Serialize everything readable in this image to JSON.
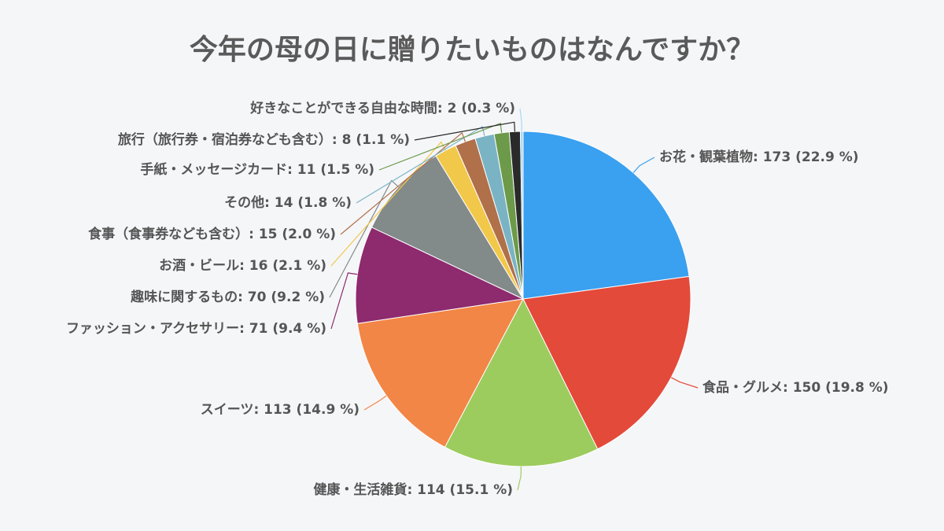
{
  "chart_data": {
    "type": "pie",
    "title": "今年の母の日に贈りたいものはなんですか？",
    "categories": [
      "お花・観葉植物",
      "食品・グルメ",
      "健康・生活雑貨",
      "スイーツ",
      "ファッション・アクセサリー",
      "趣味に関するもの",
      "お酒・ビール",
      "食事（食事券なども含む）",
      "その他",
      "手紙・メッセージカード",
      "旅行（旅行券・宿泊券なども含む）",
      "好きなことができる自由な時間"
    ],
    "values": [
      173,
      150,
      114,
      113,
      71,
      70,
      16,
      15,
      14,
      11,
      8,
      2
    ],
    "value_labels": [
      ": 173 (22.9 %)",
      ": 150 (19.8 %)",
      ": 114 (15.1 %)",
      ": 113 (14.9 %)",
      ": 71 (9.4 %)",
      ": 70 (9.2 %)",
      ": 16 (2.1 %)",
      ": 15 (2.0 %)",
      ": 14 (1.8 %)",
      ": 11 (1.5 %)",
      ": 8 (1.1 %)",
      ": 2 (0.3 %)"
    ],
    "colors": [
      "#3aa0f0",
      "#e34a3a",
      "#9ccc5e",
      "#f28646",
      "#8e2a6e",
      "#828a8a",
      "#f2c84a",
      "#b0704a",
      "#7ab4c4",
      "#6c9a4a",
      "#2a2a2a",
      "#a8d8f0"
    ]
  }
}
